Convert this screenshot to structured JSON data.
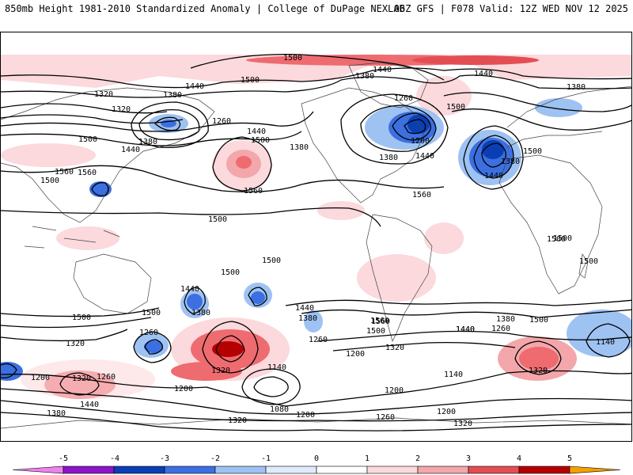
{
  "header": {
    "title": "850mb Height 1981-2010 Standardized Anomaly | College of DuPage NEXLAB",
    "run_info": "06Z GFS | F078 Valid: 12Z WED NOV 12 2025"
  },
  "map": {
    "variable": "850mb geopotential height",
    "units": "m",
    "contour_labels": [
      "1500",
      "1440",
      "1380",
      "1320",
      "1440",
      "1380",
      "1320",
      "1260",
      "1500",
      "1440",
      "1380",
      "1500",
      "1560",
      "1560",
      "1500",
      "1560",
      "1440",
      "1380",
      "1260",
      "1200",
      "1380",
      "1440",
      "1560",
      "1500",
      "1440",
      "1380",
      "1500",
      "1380",
      "1440",
      "1500",
      "1500",
      "1500",
      "1500",
      "1500",
      "1440",
      "1380",
      "1500",
      "1440",
      "1320",
      "1260",
      "1500",
      "1320",
      "1380",
      "1260",
      "1500",
      "1200",
      "1560",
      "1320",
      "1440",
      "1260",
      "1380",
      "1500",
      "1140",
      "1200",
      "1320",
      "1260",
      "1140",
      "1200",
      "1140",
      "1320",
      "1080",
      "1200",
      "1260",
      "1200",
      "1320",
      "1380",
      "1440",
      "1200",
      "1320",
      "1560",
      "1440",
      "1500",
      "1500"
    ],
    "anomaly_colors": {
      "neg5": "#ee82ee",
      "neg4": "#8b15c9",
      "neg3": "#0a3fb4",
      "neg2": "#3c6fe0",
      "neg1": "#9ec2f2",
      "neg05": "#d4e6fb",
      "pos05": "#fbd9dc",
      "pos1": "#f6b4b8",
      "pos2": "#ee6b70",
      "pos3": "#d42025",
      "pos4": "#b40000",
      "pos5": "#f2a100"
    }
  },
  "colorbar": {
    "ticks": [
      "-5",
      "-4",
      "-3",
      "-2",
      "-1",
      "0",
      "1",
      "2",
      "3",
      "4",
      "5"
    ],
    "segments": [
      "#ee82ee",
      "#8b15c9",
      "#0a3fb4",
      "#3c6fe0",
      "#9ec2f2",
      "#dfeafb",
      "#ffffff",
      "#fbd9dc",
      "#f3a7ab",
      "#e34e54",
      "#b40000",
      "#f2a100"
    ]
  }
}
